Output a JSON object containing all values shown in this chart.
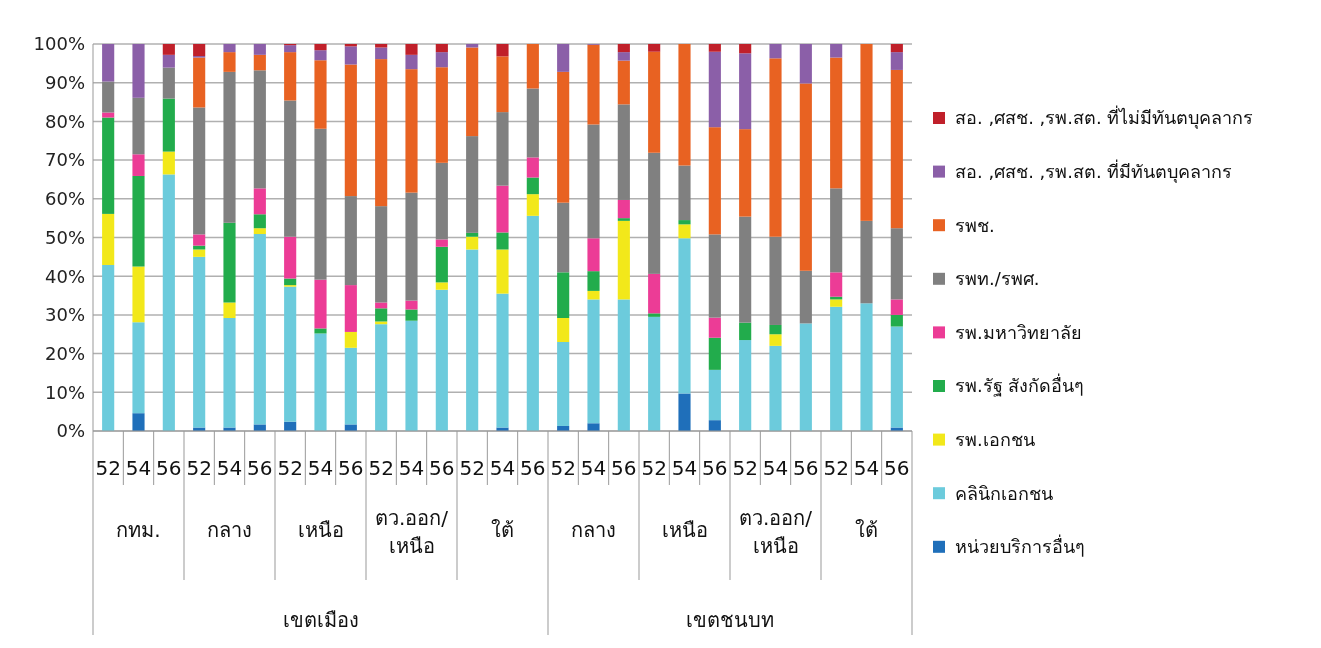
{
  "chart_data": {
    "type": "bar",
    "stacked": true,
    "categories": [
      "52",
      "54",
      "56",
      "52",
      "54",
      "56",
      "52",
      "54",
      "56",
      "52",
      "54",
      "56",
      "52",
      "54",
      "56",
      "52",
      "54",
      "56",
      "52",
      "54",
      "56",
      "52",
      "54",
      "56",
      "52",
      "54",
      "56"
    ],
    "series": [
      {
        "name": "หน่วยบริการอื่นๆ",
        "color": "#1f6fba",
        "values": [
          0,
          4.6,
          0,
          0.9,
          0.9,
          1.7,
          2.4,
          0,
          1.7,
          0,
          0,
          0,
          0,
          0.9,
          0,
          1.3,
          2.0,
          0,
          0,
          9.7,
          2.8,
          0,
          0,
          0,
          0,
          0,
          0.9
        ]
      },
      {
        "name": "คลินิกเอกชน",
        "color": "#6ccbdc",
        "values": [
          42.9,
          23.5,
          66.3,
          44.1,
          28.3,
          49.2,
          34.9,
          25.2,
          19.8,
          27.6,
          28.5,
          36.5,
          46.9,
          34.6,
          55.6,
          21.7,
          32.0,
          34.0,
          29.5,
          40.1,
          13.0,
          23.5,
          22.0,
          27.8,
          32.1,
          33.0,
          26.1
        ]
      },
      {
        "name": "รพ.เอกชน",
        "color": "#f2e81a",
        "values": [
          13.2,
          14.4,
          5.9,
          1.9,
          4.0,
          1.5,
          0.4,
          0,
          4.1,
          0.7,
          0,
          1.9,
          3.3,
          11.4,
          5.6,
          6.2,
          2.2,
          20.3,
          0,
          3.6,
          0,
          0,
          3.0,
          0,
          1.9,
          0,
          0
        ]
      },
      {
        "name": "รพ.รัฐ สังกัดอื่นๆ",
        "color": "#22ac4c",
        "values": [
          24.9,
          23.4,
          13.7,
          1.0,
          20.6,
          3.6,
          1.7,
          1.3,
          0,
          3.4,
          2.9,
          9.2,
          1.0,
          4.4,
          4.3,
          11.8,
          5.1,
          0.7,
          0.9,
          1.1,
          8.3,
          4.5,
          2.4,
          0,
          0.7,
          0,
          3.0
        ]
      },
      {
        "name": "รพ.มหาวิทยาลัย",
        "color": "#ec3c96",
        "values": [
          1.3,
          5.6,
          0,
          2.9,
          0,
          6.7,
          10.8,
          12.6,
          12.1,
          1.5,
          2.3,
          1.9,
          0,
          12.1,
          5.2,
          0,
          8.5,
          4.7,
          10.2,
          0,
          5.2,
          0,
          0,
          0,
          6.3,
          0,
          4.0
        ]
      },
      {
        "name": "รพท./รพศ.",
        "color": "#808080",
        "values": [
          8.0,
          14.6,
          8.0,
          32.8,
          39.0,
          30.5,
          35.2,
          39.0,
          23.0,
          24.9,
          27.9,
          19.8,
          25.0,
          19.0,
          17.8,
          18.0,
          29.4,
          24.7,
          31.3,
          14.1,
          21.5,
          27.4,
          22.8,
          13.6,
          21.7,
          21.3,
          18.4
        ]
      },
      {
        "name": "รพช.",
        "color": "#e86222",
        "values": [
          0,
          0,
          0,
          12.9,
          5.1,
          4.0,
          12.5,
          17.7,
          34.0,
          38.0,
          31.9,
          24.7,
          22.9,
          14.4,
          11.5,
          33.8,
          20.6,
          11.3,
          26.1,
          31.4,
          27.7,
          22.6,
          46.1,
          48.4,
          33.8,
          45.7,
          40.9
        ]
      },
      {
        "name": "สอ. ,ศสช. ,รพ.สต. ที่มีทันตบุคลากร",
        "color": "#8b5fa8",
        "values": [
          9.7,
          13.9,
          3.3,
          0.4,
          2.1,
          2.8,
          1.8,
          2.6,
          4.7,
          3.0,
          3.7,
          3.9,
          0.9,
          0,
          0,
          7.2,
          0.2,
          2.2,
          0,
          0,
          19.5,
          19.6,
          3.7,
          10.2,
          3.5,
          0,
          4.6
        ]
      },
      {
        "name": "สอ. ,ศสช. ,รพ.สต. ที่ไม่มีทันตบุคลากร",
        "color": "#c0202a",
        "values": [
          0,
          0,
          2.8,
          3.1,
          0,
          0,
          0.3,
          1.6,
          0.6,
          0.9,
          2.8,
          2.1,
          0,
          3.2,
          0,
          0,
          0,
          2.1,
          2.0,
          0,
          2.0,
          2.4,
          0,
          0,
          0,
          0,
          2.1
        ]
      }
    ],
    "ylim": [
      0,
      100
    ],
    "yticks": [
      {
        "value": 0,
        "label": "0%"
      },
      {
        "value": 10,
        "label": "10%"
      },
      {
        "value": 20,
        "label": "20%"
      },
      {
        "value": 30,
        "label": "30%"
      },
      {
        "value": 40,
        "label": "40%"
      },
      {
        "value": 50,
        "label": "50%"
      },
      {
        "value": 60,
        "label": "60%"
      },
      {
        "value": 70,
        "label": "70%"
      },
      {
        "value": 80,
        "label": "80%"
      },
      {
        "value": 90,
        "label": "90%"
      },
      {
        "value": 100,
        "label": "100%"
      }
    ],
    "grid": "y",
    "legend": "right",
    "annotations": [
      "กทม.",
      "กลาง",
      "เหนือ",
      "ตว.ออก/เหนือ",
      "ใต้",
      "กลาง",
      "เหนือ",
      "ตว.ออก/เหนือ",
      "ใต้",
      "เขตเมือง",
      "เขตชนบท"
    ]
  }
}
